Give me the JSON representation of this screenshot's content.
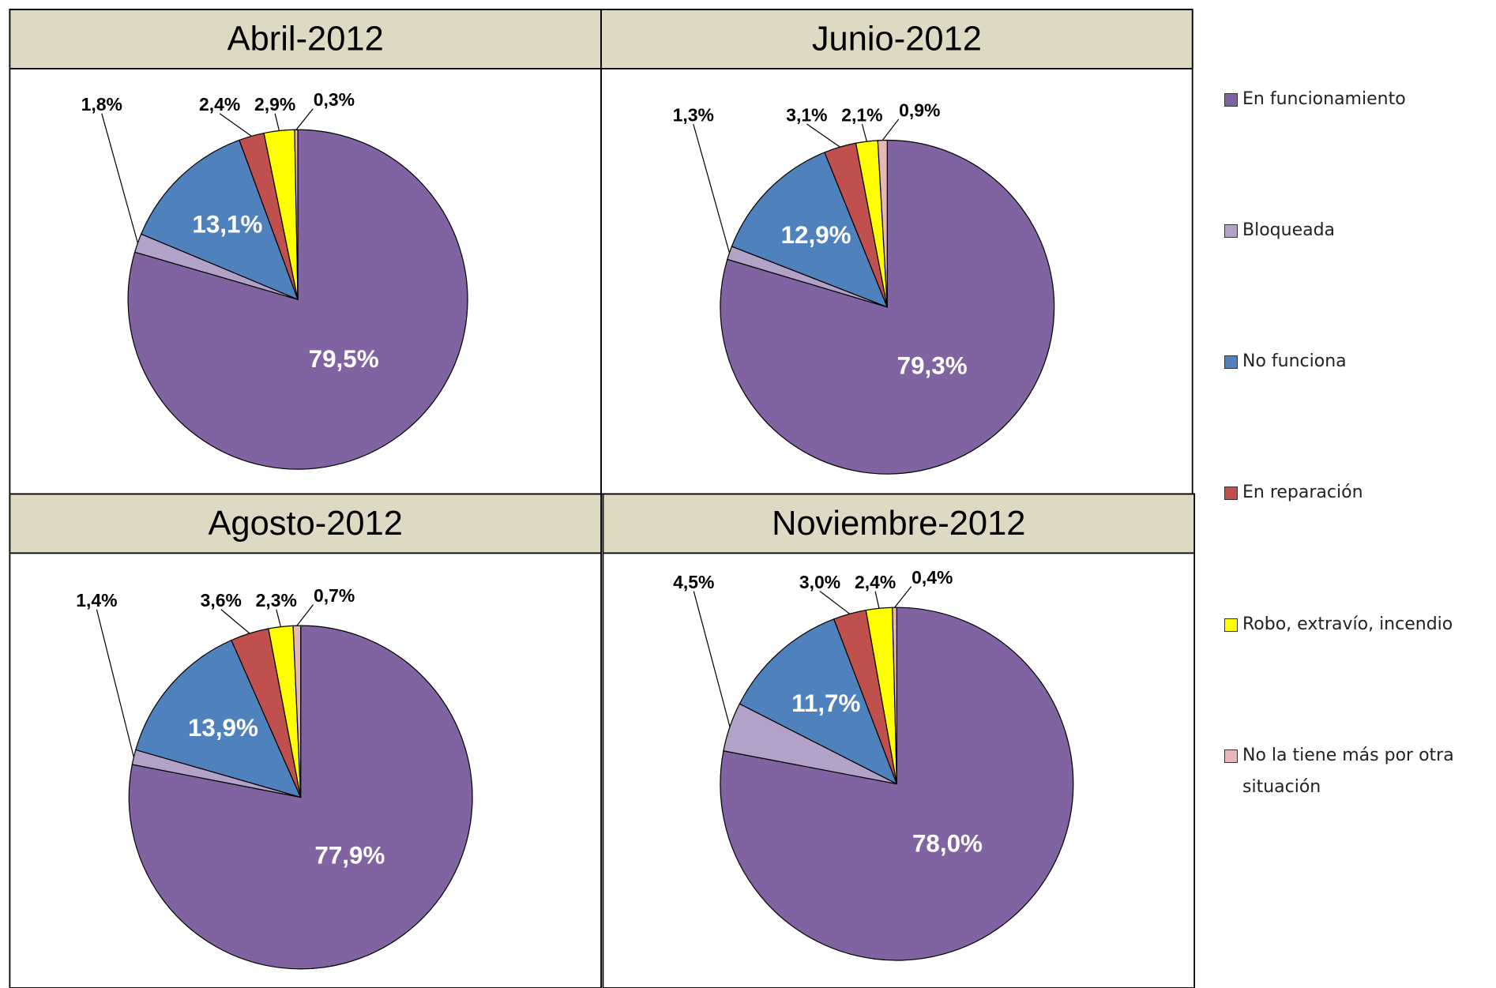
{
  "chart_data": [
    {
      "type": "pie",
      "title": "Abril-2012",
      "values": [
        79.5,
        1.8,
        13.1,
        2.4,
        2.9,
        0.3
      ],
      "value_labels": [
        "79,5%",
        "1,8%",
        "13,1%",
        "2,4%",
        "2,9%",
        "0,3%"
      ]
    },
    {
      "type": "pie",
      "title": "Junio-2012",
      "values": [
        79.3,
        1.3,
        12.9,
        3.1,
        2.1,
        0.9
      ],
      "value_labels": [
        "79,3%",
        "1,3%",
        "12,9%",
        "3,1%",
        "2,1%",
        "0,9%"
      ]
    },
    {
      "type": "pie",
      "title": "Agosto-2012",
      "values": [
        77.9,
        1.4,
        13.9,
        3.6,
        2.3,
        0.7
      ],
      "value_labels": [
        "77,9%",
        "1,4%",
        "13,9%",
        "3,6%",
        "2,3%",
        "0,7%"
      ]
    },
    {
      "type": "pie",
      "title": "Noviembre-2012",
      "values": [
        78.0,
        4.5,
        11.7,
        3.0,
        2.4,
        0.4
      ],
      "value_labels": [
        "78,0%",
        "4,5%",
        "11,7%",
        "3,0%",
        "2,4%",
        "0,4%"
      ]
    }
  ],
  "legend": {
    "categories": [
      "En funcionamiento",
      "Bloqueada",
      "No funciona",
      "En reparación",
      "Robo, extravío, incendio",
      "No la tiene más por otra situación"
    ],
    "colors": [
      "#8064a2",
      "#b3a2c7",
      "#4f81bd",
      "#c0504d",
      "#ffff00",
      "#e6b9b8"
    ]
  }
}
